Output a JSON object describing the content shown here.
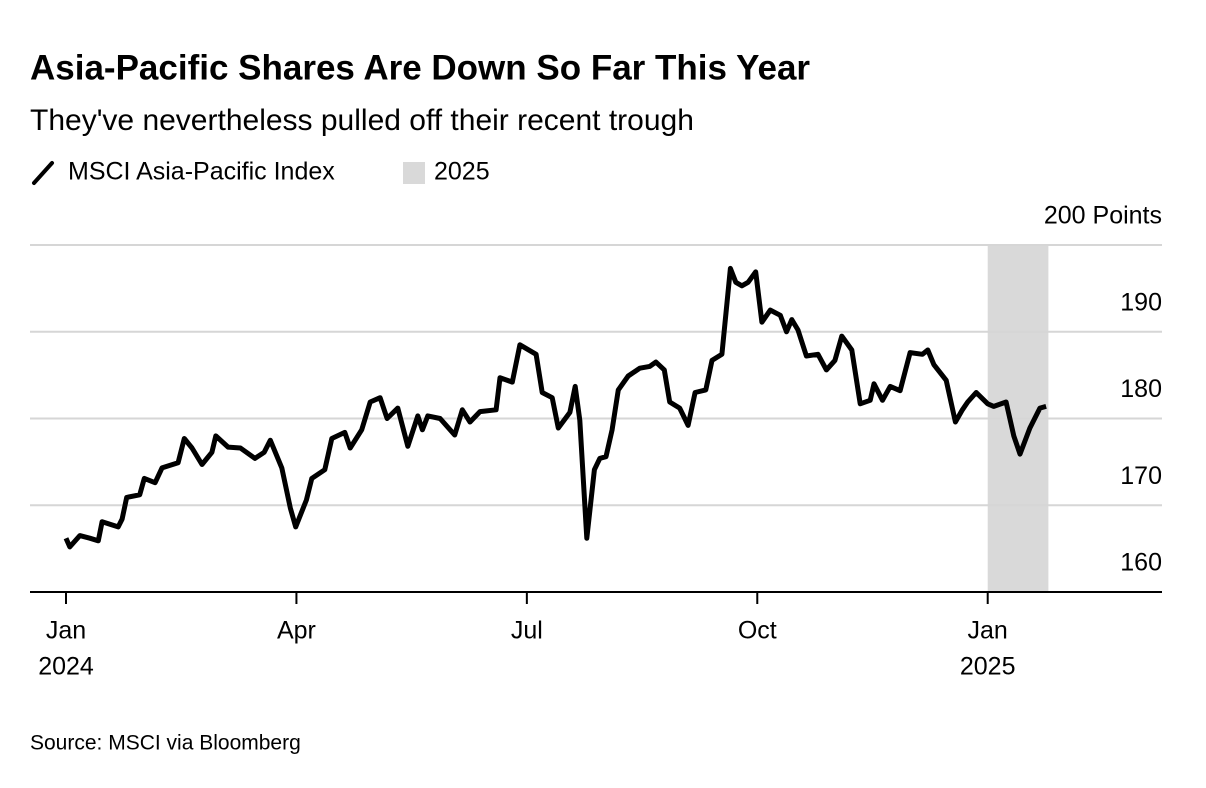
{
  "chart_data": {
    "type": "line",
    "title": "Asia-Pacific Shares Are Down So Far This Year",
    "subtitle": "They've nevertheless pulled off their recent trough",
    "source": "Source: MSCI via Bloomberg",
    "highlight": {
      "label": "2025",
      "range": [
        12,
        12.79
      ],
      "color": "#d9d9d9"
    },
    "xlim": [
      0,
      14.1
    ],
    "xticks": [
      {
        "value": 0,
        "label": "Jan",
        "year": "2024"
      },
      {
        "value": 3,
        "label": "Apr"
      },
      {
        "value": 6,
        "label": "Jul"
      },
      {
        "value": 9,
        "label": "Oct"
      },
      {
        "value": 12,
        "label": "Jan",
        "year": "2025"
      }
    ],
    "ylim": [
      160,
      200
    ],
    "yticks": [
      {
        "value": 200,
        "label": "200 Points"
      },
      190,
      180,
      170,
      160
    ],
    "grid": true,
    "series": [
      {
        "name": "MSCI Asia-Pacific Index",
        "color": "#000000",
        "x": [
          0,
          0.05,
          0.18,
          0.31,
          0.42,
          0.47,
          0.68,
          0.73,
          0.79,
          0.96,
          1.02,
          1.16,
          1.25,
          1.46,
          1.54,
          1.64,
          1.77,
          1.9,
          1.95,
          2.11,
          2.27,
          2.46,
          2.58,
          2.66,
          2.81,
          2.92,
          2.99,
          3.13,
          3.2,
          3.37,
          3.46,
          3.63,
          3.7,
          3.85,
          3.96,
          4.09,
          4.18,
          4.32,
          4.45,
          4.58,
          4.64,
          4.71,
          4.87,
          5.06,
          5.16,
          5.26,
          5.39,
          5.6,
          5.65,
          5.81,
          5.91,
          6.12,
          6.2,
          6.33,
          6.41,
          6.56,
          6.63,
          6.69,
          6.78,
          6.88,
          6.95,
          7.03,
          7.11,
          7.19,
          7.32,
          7.47,
          7.6,
          7.68,
          7.79,
          7.86,
          7.99,
          8.1,
          8.19,
          8.33,
          8.41,
          8.54,
          8.65,
          8.72,
          8.8,
          8.88,
          8.98,
          9.06,
          9.17,
          9.3,
          9.38,
          9.45,
          9.53,
          9.64,
          9.79,
          9.9,
          10.01,
          10.1,
          10.23,
          10.34,
          10.47,
          10.52,
          10.63,
          10.73,
          10.86,
          10.99,
          11.15,
          11.22,
          11.3,
          11.46,
          11.58,
          11.67,
          11.74,
          11.85,
          12.0,
          12.08,
          12.24,
          12.34,
          12.42,
          12.55,
          12.68,
          12.76
        ],
        "values": [
          166.2,
          165.2,
          166.5,
          166.2,
          165.9,
          168.1,
          167.5,
          168.4,
          170.9,
          171.2,
          173.1,
          172.6,
          174.3,
          174.9,
          177.7,
          176.6,
          174.7,
          176.1,
          178.0,
          176.7,
          176.6,
          175.4,
          176.1,
          177.5,
          174.3,
          169.7,
          167.5,
          170.6,
          173.1,
          174.1,
          177.7,
          178.4,
          176.6,
          178.7,
          181.9,
          182.4,
          180.0,
          181.2,
          176.8,
          180.3,
          178.7,
          180.3,
          180.0,
          178.1,
          181.0,
          179.6,
          180.8,
          181.0,
          184.7,
          184.2,
          188.5,
          187.4,
          183.0,
          182.4,
          178.9,
          180.7,
          183.7,
          179.8,
          166.2,
          174.1,
          175.4,
          175.6,
          178.7,
          183.3,
          184.9,
          185.8,
          186.0,
          186.5,
          185.6,
          181.9,
          181.2,
          179.2,
          183.0,
          183.3,
          186.7,
          187.4,
          197.3,
          195.7,
          195.3,
          195.7,
          196.9,
          191.1,
          192.5,
          191.9,
          190.0,
          191.4,
          190.2,
          187.2,
          187.4,
          185.6,
          186.7,
          189.5,
          187.9,
          181.7,
          182.1,
          184.0,
          182.1,
          183.7,
          183.2,
          187.6,
          187.4,
          187.9,
          186.2,
          184.4,
          179.6,
          181.0,
          181.9,
          183.0,
          181.7,
          181.4,
          181.9,
          178.0,
          175.9,
          178.9,
          181.2,
          181.4
        ]
      }
    ]
  }
}
